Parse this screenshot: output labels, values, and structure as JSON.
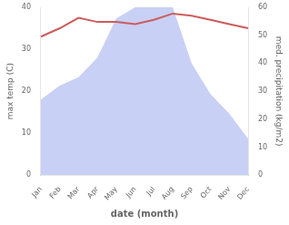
{
  "chart_data": {
    "type": "line",
    "categories": [
      "Jan",
      "Feb",
      "Mar",
      "Apr",
      "May",
      "Jun",
      "Jul",
      "Aug",
      "Sep",
      "Oct",
      "Nov",
      "Dec"
    ],
    "series": [
      {
        "color": "#cd5c5c",
        "values": [
          33,
          35,
          37.5,
          36.5,
          36.5,
          36,
          37,
          38.5,
          38,
          37,
          36,
          35
        ]
      },
      {
        "type": "area",
        "axis": "y2",
        "color": "#c8d0f5",
        "values": [
          27,
          32,
          35,
          42,
          56,
          60,
          60,
          60,
          40,
          29,
          22,
          13
        ]
      }
    ],
    "xlabel": "date (month)",
    "ylabel": "max temp (C)",
    "y2label": "med. precipitation (kg/m2)",
    "ylim": [
      0,
      40
    ],
    "yticks": [
      0,
      10,
      20,
      30,
      40
    ],
    "y2lim": [
      0,
      60
    ],
    "y2ticks": [
      0,
      10,
      20,
      30,
      40,
      50,
      60
    ],
    "grid": false
  }
}
